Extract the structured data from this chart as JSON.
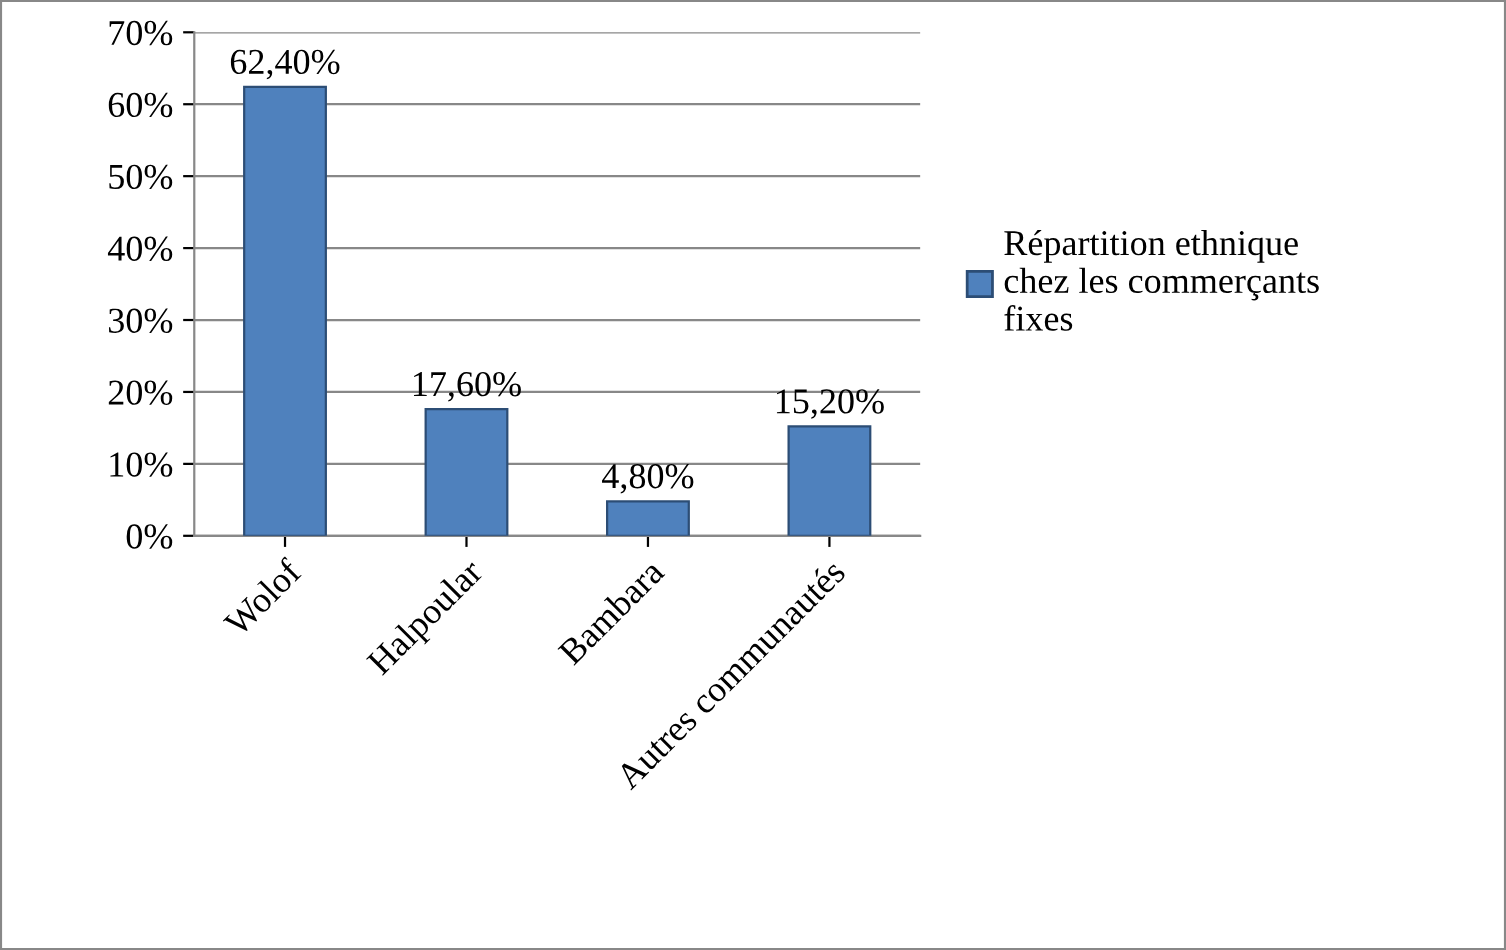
{
  "chart_data": {
    "type": "bar",
    "categories": [
      "Wolof",
      "Halpoular",
      "Bambara",
      "Autres communautés"
    ],
    "series": [
      {
        "name": "Répartition ethnique chez les commerçants fixes",
        "color": "#4f81bd",
        "values": [
          62.4,
          17.6,
          4.8,
          15.2
        ],
        "value_labels": [
          "62,40%",
          "17,60%",
          "4,80%",
          "15,20%"
        ]
      }
    ],
    "ylim": [
      0,
      70
    ],
    "yticks": [
      {
        "value": 0,
        "label": "0%"
      },
      {
        "value": 10,
        "label": "10%"
      },
      {
        "value": 20,
        "label": "20%"
      },
      {
        "value": 30,
        "label": "30%"
      },
      {
        "value": 40,
        "label": "40%"
      },
      {
        "value": 50,
        "label": "50%"
      },
      {
        "value": 60,
        "label": "60%"
      },
      {
        "value": 70,
        "label": "70%"
      }
    ],
    "grid": "y",
    "legend": "right"
  }
}
